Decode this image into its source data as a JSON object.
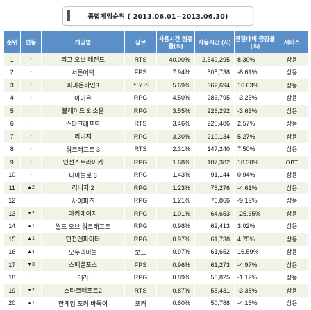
{
  "title": "종합게임순위 ( 2013.06.01~2013.06.30)",
  "columns": [
    "순위",
    "변동",
    "게임명",
    "장르",
    "사용시간 점유율(%)",
    "사용시간 (시)",
    "전달대비 증감율(%)",
    "서비스"
  ],
  "rows": [
    {
      "rank": "1",
      "move": "-",
      "name": "리그 오브 레전드",
      "genre": "RTS",
      "share": "40.00%",
      "hours": "2,549,295",
      "change": "8.30%",
      "service": "상용"
    },
    {
      "rank": "2",
      "move": "-",
      "name": "서든어택",
      "genre": "FPS",
      "share": "7.94%",
      "hours": "505,738",
      "change": "-8.61%",
      "service": "상용"
    },
    {
      "rank": "3",
      "move": "-",
      "name": "피파온라인3",
      "genre": "스포츠",
      "share": "5.69%",
      "hours": "362,694",
      "change": "16.63%",
      "service": "상용"
    },
    {
      "rank": "4",
      "move": "-",
      "name": "아이온",
      "genre": "RPG",
      "share": "4.50%",
      "hours": "286,795",
      "change": "-3.25%",
      "service": "상용"
    },
    {
      "rank": "5",
      "move": "-",
      "name": "블레이드 & 소울",
      "genre": "RPG",
      "share": "3.55%",
      "hours": "226,292",
      "change": "-3.63%",
      "service": "상용"
    },
    {
      "rank": "6",
      "move": "-",
      "name": "스타크래프트",
      "genre": "RTS",
      "share": "3.46%",
      "hours": "220,486",
      "change": "2.57%",
      "service": "상용"
    },
    {
      "rank": "7",
      "move": "-",
      "name": "리니지",
      "genre": "RPG",
      "share": "3.30%",
      "hours": "210,134",
      "change": "5.27%",
      "service": "상용"
    },
    {
      "rank": "8",
      "move": "-",
      "name": "워크래프트 3",
      "genre": "RTS",
      "share": "2.31%",
      "hours": "147,240",
      "change": "7.50%",
      "service": "상용"
    },
    {
      "rank": "9",
      "move": "-",
      "name": "던전스트라이커",
      "genre": "RPG",
      "share": "1.68%",
      "hours": "107,382",
      "change": "18.30%",
      "service": "OBT"
    },
    {
      "rank": "10",
      "move": "-",
      "name": "디아블로 3",
      "genre": "RPG",
      "share": "1.43%",
      "hours": "91,144",
      "change": "0.94%",
      "service": "상용"
    },
    {
      "rank": "11",
      "move": "▲2",
      "name": "리니지 2",
      "genre": "RPG",
      "share": "1.23%",
      "hours": "78,276",
      "change": "-4.61%",
      "service": "상용"
    },
    {
      "rank": "12",
      "move": "-",
      "name": "사이퍼즈",
      "genre": "RPG",
      "share": "1.21%",
      "hours": "76,866",
      "change": "-9.19%",
      "service": "상용"
    },
    {
      "rank": "13",
      "move": "▼2",
      "name": "아키에이지",
      "genre": "RPG",
      "share": "1.01%",
      "hours": "64,653",
      "change": "-25.65%",
      "service": "상용"
    },
    {
      "rank": "14",
      "move": "▲1",
      "name": "월드 오브 워크래프트",
      "genre": "RPG",
      "share": "0.98%",
      "hours": "62,413",
      "change": "3.02%",
      "service": "상용"
    },
    {
      "rank": "15",
      "move": "▲1",
      "name": "던전앤파이터",
      "genre": "RPG",
      "share": "0.97%",
      "hours": "61,738",
      "change": "4.75%",
      "service": "상용"
    },
    {
      "rank": "16",
      "move": "▲4",
      "name": "모두의마블",
      "genre": "보드",
      "share": "0.97%",
      "hours": "61,652",
      "change": "16.59%",
      "service": "상용"
    },
    {
      "rank": "17",
      "move": "▼3",
      "name": "스페셜포스",
      "genre": "FPS",
      "share": "0.96%",
      "hours": "61,273",
      "change": "-4.97%",
      "service": "상용"
    },
    {
      "rank": "18",
      "move": "-",
      "name": "테라",
      "genre": "RPG",
      "share": "0.89%",
      "hours": "56,825",
      "change": "-1.12%",
      "service": "상용"
    },
    {
      "rank": "19",
      "move": "▼2",
      "name": "스타크래프트2",
      "genre": "RTS",
      "share": "0.87%",
      "hours": "55,431",
      "change": "-3.38%",
      "service": "상용"
    },
    {
      "rank": "20",
      "move": "▲1",
      "name": "한게임 포커 바둑이",
      "genre": "포커",
      "share": "0.80%",
      "hours": "50,788",
      "change": "-4.18%",
      "service": "상용"
    }
  ],
  "colors": {
    "header_bg": "#5a8fc8",
    "odd_row_bg": "#f0f4e6",
    "even_row_bg": "#ffffff"
  }
}
